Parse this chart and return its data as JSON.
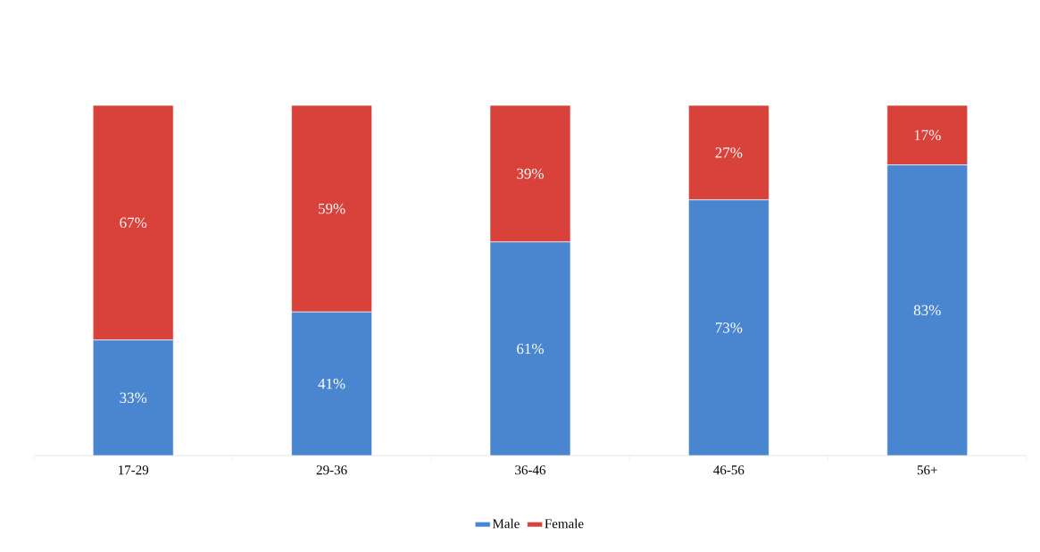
{
  "chart_data": {
    "type": "bar",
    "stacked": true,
    "categories": [
      "17-29",
      "29-36",
      "36-46",
      "46-56",
      "56+"
    ],
    "series": [
      {
        "name": "Male",
        "color": "#4a86d0",
        "values": [
          33,
          41,
          61,
          73,
          83
        ],
        "value_labels": [
          "33%",
          "41%",
          "61%",
          "73%",
          "83%"
        ]
      },
      {
        "name": "Female",
        "color": "#d9413b",
        "values": [
          67,
          59,
          39,
          27,
          17
        ],
        "value_labels": [
          "67%",
          "59%",
          "39%",
          "27%",
          "17%"
        ]
      }
    ],
    "legend": "bottom"
  }
}
